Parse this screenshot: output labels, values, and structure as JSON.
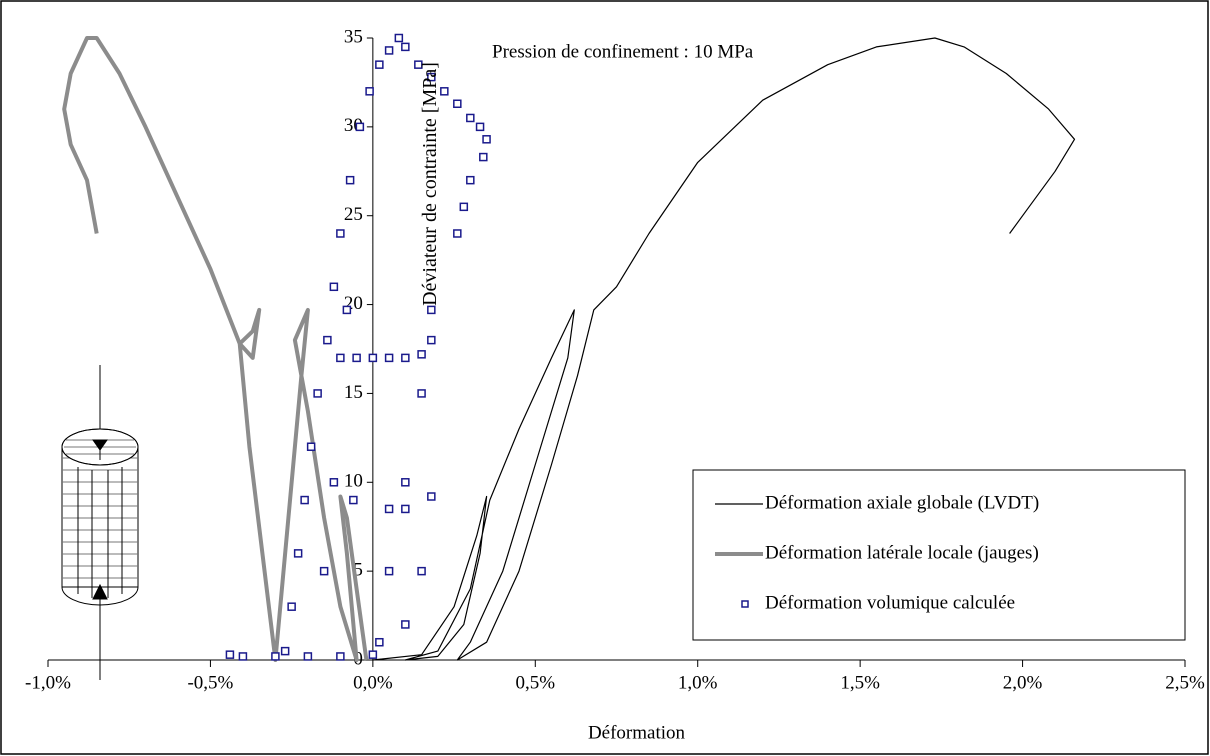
{
  "chart_data": {
    "type": "line",
    "annotation": "Pression de confinement : 10 MPa",
    "xlabel": "Déformation",
    "ylabel": "Déviateur de contrainte [MPa]",
    "xlim": [
      -1,
      2.5
    ],
    "ylim": [
      0,
      35
    ],
    "xticks": [
      {
        "value": -1,
        "label": "-1,0%"
      },
      {
        "value": -0.5,
        "label": "-0,5%"
      },
      {
        "value": 0,
        "label": "0,0%"
      },
      {
        "value": 0.5,
        "label": "0,5%"
      },
      {
        "value": 1,
        "label": "1,0%"
      },
      {
        "value": 1.5,
        "label": "1,5%"
      },
      {
        "value": 2,
        "label": "2,0%"
      },
      {
        "value": 2.5,
        "label": "2,5%"
      }
    ],
    "yticks": [
      0,
      5,
      10,
      15,
      20,
      25,
      30,
      35
    ],
    "legend": "lower right",
    "series": [
      {
        "name": "Déformation axiale globale (LVDT)",
        "type": "line",
        "color": "#000000",
        "x": [
          0.0,
          0.15,
          0.25,
          0.32,
          0.35,
          0.33,
          0.28,
          0.2,
          0.1,
          0.2,
          0.3,
          0.36,
          0.45,
          0.55,
          0.62,
          0.6,
          0.5,
          0.4,
          0.3,
          0.26,
          0.35,
          0.45,
          0.55,
          0.63,
          0.68,
          0.75,
          0.85,
          1.0,
          1.2,
          1.4,
          1.55,
          1.73,
          1.82,
          1.95,
          2.08,
          2.16,
          2.1,
          2.02,
          1.96
        ],
        "y": [
          0,
          0.3,
          3,
          7,
          9.2,
          6,
          2,
          0.2,
          0,
          0.5,
          4,
          9,
          13,
          17,
          19.7,
          17,
          11,
          5,
          1,
          0,
          1,
          5,
          11,
          16,
          19.7,
          21,
          24,
          28,
          31.5,
          33.5,
          34.5,
          35,
          34.5,
          33,
          31,
          29.3,
          27.5,
          25.5,
          24
        ]
      },
      {
        "name": "Déformation latérale locale (jauges)",
        "type": "line",
        "color": "#8c8c8c",
        "x": [
          -0.02,
          -0.05,
          -0.08,
          -0.1,
          -0.08,
          -0.06,
          -0.05,
          -0.1,
          -0.15,
          -0.2,
          -0.24,
          -0.2,
          -0.22,
          -0.26,
          -0.3,
          -0.34,
          -0.38,
          -0.41,
          -0.37,
          -0.35,
          -0.37,
          -0.41,
          -0.5,
          -0.6,
          -0.7,
          -0.78,
          -0.85,
          -0.88,
          -0.93,
          -0.95,
          -0.93,
          -0.88,
          -0.85
        ],
        "y": [
          0,
          4,
          8,
          9.2,
          6,
          2,
          0,
          3,
          8,
          14,
          18,
          19.7,
          16,
          8,
          0,
          6,
          12,
          17.8,
          18.5,
          19.7,
          17,
          17.8,
          22,
          26,
          30,
          33,
          35,
          35,
          33,
          31,
          29,
          27,
          24
        ]
      },
      {
        "name": "Déformation volumique calculée",
        "type": "scatter",
        "color": "#1a1a8c",
        "x": [
          -0.27,
          -0.25,
          -0.23,
          -0.21,
          -0.19,
          -0.17,
          -0.14,
          -0.12,
          -0.1,
          -0.07,
          -0.04,
          -0.01,
          0.02,
          0.05,
          0.08,
          0.1,
          0.14,
          0.18,
          0.22,
          0.26,
          0.3,
          0.33,
          0.35,
          0.34,
          0.3,
          0.28,
          0.26,
          -0.08,
          -0.1,
          -0.05,
          0.0,
          0.05,
          0.1,
          0.15,
          0.18,
          0.18,
          0.15,
          0.1,
          0.05,
          0.02,
          -0.06,
          0.05,
          0.1,
          0.18,
          0.15,
          0.1,
          -0.1,
          -0.2,
          -0.3,
          -0.4,
          -0.44,
          0.0,
          -0.15,
          -0.12
        ],
        "y": [
          0.5,
          3,
          6,
          9,
          12,
          15,
          18,
          21,
          24,
          27,
          30,
          32,
          33.5,
          34.3,
          35,
          34.5,
          33.5,
          32.8,
          32,
          31.3,
          30.5,
          30,
          29.3,
          28.3,
          27,
          25.5,
          24,
          19.7,
          17,
          17,
          17,
          17,
          17,
          17.2,
          18,
          19.7,
          15,
          10,
          5,
          1,
          9,
          8.5,
          8.5,
          9.2,
          5,
          2,
          0.2,
          0.2,
          0.2,
          0.2,
          0.3,
          0.3,
          5,
          10
        ]
      }
    ]
  }
}
